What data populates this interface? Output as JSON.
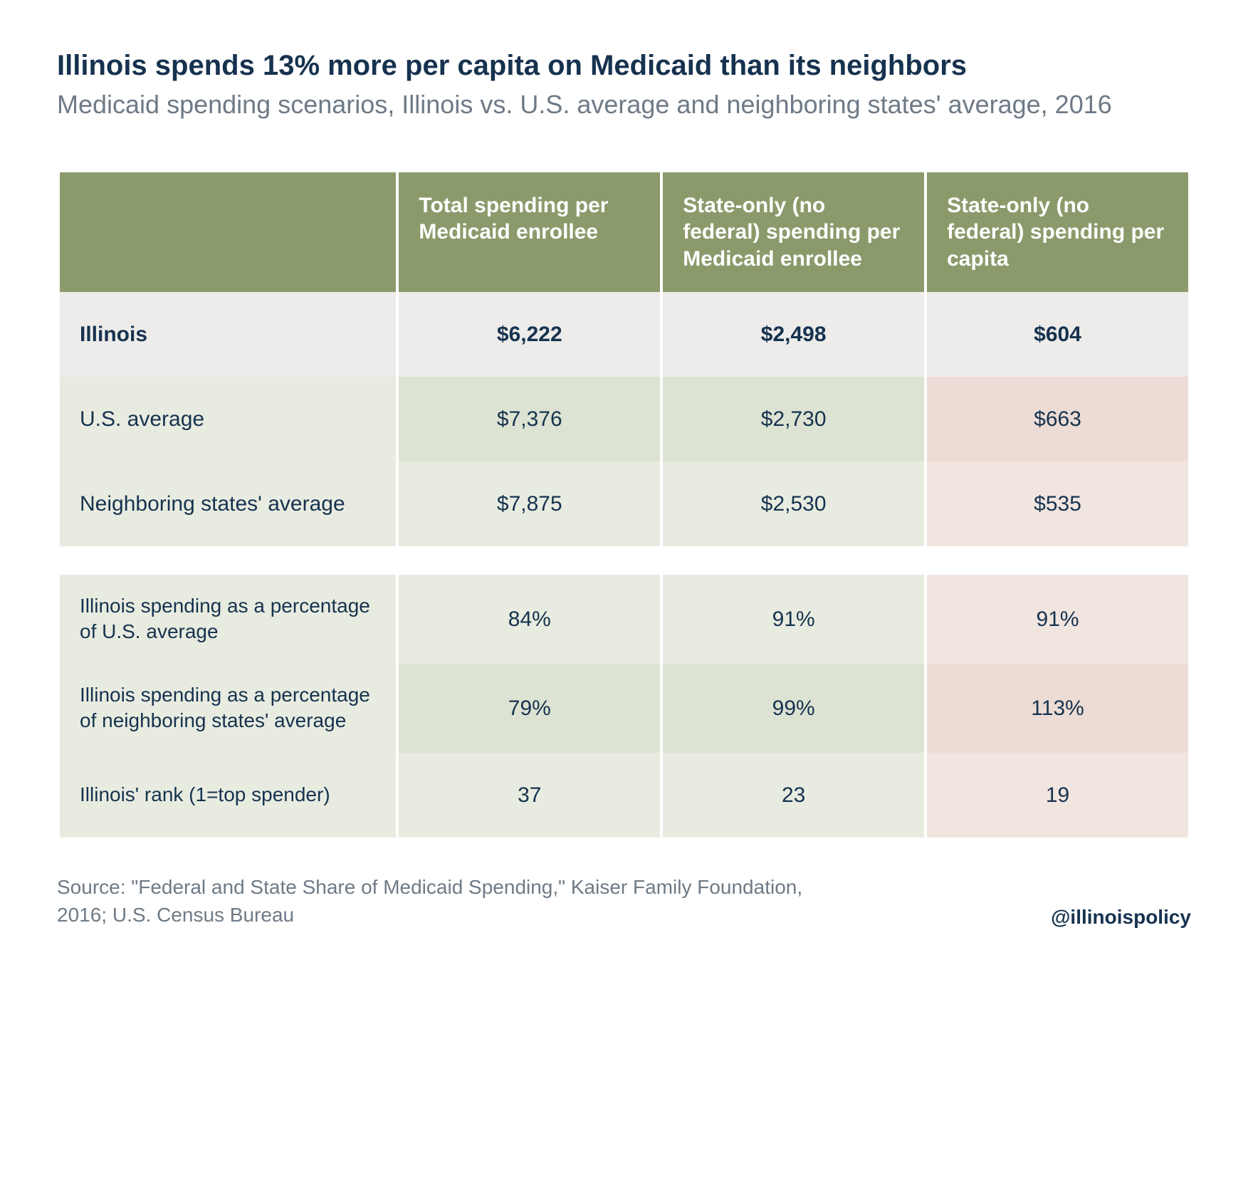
{
  "title": "Illinois spends 13% more per capita on Medicaid than its neighbors",
  "subtitle": "Medicaid spending scenarios, Illinois vs. U.S. average and neighboring states' average, 2016",
  "columns": [
    "Total spending per Medicaid enrollee",
    "State-only (no federal) spending per Medicaid enrollee",
    "State-only (no federal) spending per capita"
  ],
  "colors": {
    "header_bg": "#8b9a6b",
    "header_text": "#ffffff",
    "label_bg_light": "#edecea",
    "green_light": "#e8ece0",
    "green_med": "#dde3d2",
    "pink_light": "#f1e5e0",
    "pink_med": "#ecdcd5",
    "title_color": "#16324f",
    "subtitle_color": "#6e7a86"
  },
  "section1": [
    {
      "label": "Illinois",
      "bold": true,
      "values": [
        "$6,222",
        "$2,498",
        "$604"
      ]
    },
    {
      "label": "U.S. average",
      "bold": false,
      "values": [
        "$7,376",
        "$2,730",
        "$663"
      ]
    },
    {
      "label": "Neighboring states' average",
      "bold": false,
      "values": [
        "$7,875",
        "$2,530",
        "$535"
      ]
    }
  ],
  "section2": [
    {
      "label": "Illinois spending as a percentage of U.S. average",
      "values": [
        "84%",
        "91%",
        "91%"
      ]
    },
    {
      "label": "Illinois spending as a percentage of neighboring states' average",
      "values": [
        "79%",
        "99%",
        "113%"
      ]
    },
    {
      "label": "Illinois' rank (1=top spender)",
      "values": [
        "37",
        "23",
        "19"
      ]
    }
  ],
  "source": "Source: \"Federal and State Share of Medicaid Spending,\" Kaiser Family Foundation, 2016; U.S. Census Bureau",
  "handle": "@illinoispolicy"
}
